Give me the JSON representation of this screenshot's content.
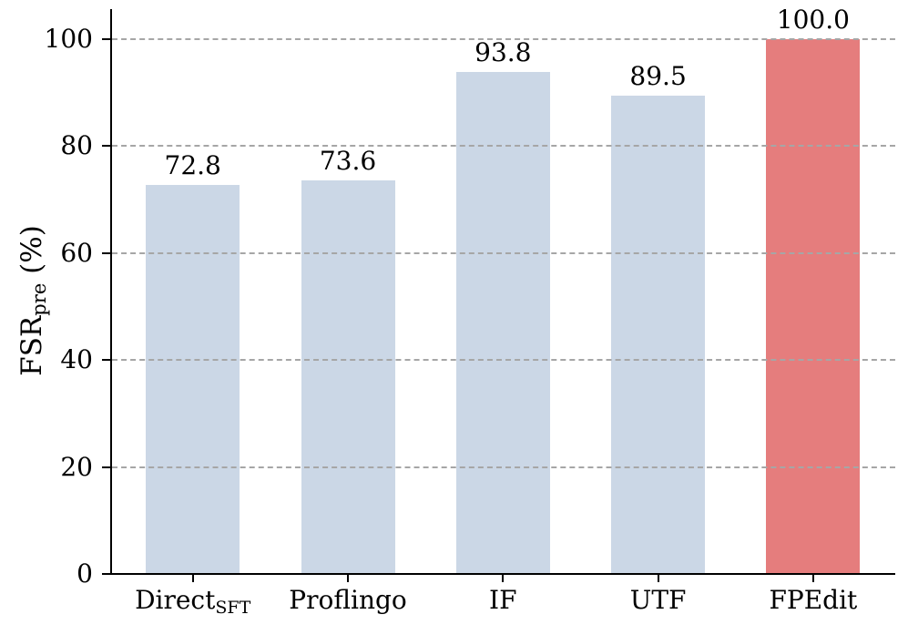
{
  "chart": {
    "ylabel": {
      "main": "FSR",
      "sub": "pre",
      "suffix": " (%)"
    }
  },
  "chart_data": {
    "type": "bar",
    "title": "",
    "categories": [
      "Direct_SFT",
      "Proflingo",
      "IF",
      "UTF",
      "FPEdit"
    ],
    "category_labels": [
      {
        "text": "Direct",
        "sub": "SFT"
      },
      {
        "text": "Proflingo",
        "sub": ""
      },
      {
        "text": "IF",
        "sub": ""
      },
      {
        "text": "UTF",
        "sub": ""
      },
      {
        "text": "FPEdit",
        "sub": ""
      }
    ],
    "values": [
      72.8,
      73.6,
      93.8,
      89.5,
      100.0
    ],
    "value_labels": [
      "72.8",
      "73.6",
      "93.8",
      "89.5",
      "100.0"
    ],
    "bar_colors": [
      "#cbd7e6",
      "#cbd7e6",
      "#cbd7e6",
      "#cbd7e6",
      "#e57d7d"
    ],
    "bar_color_default": "#cbd7e6",
    "bar_color_highlight": "#e57d7d",
    "highlight_category": "FPEdit",
    "xlabel": "",
    "ylabel": "FSR_pre (%)",
    "yticks": [
      0,
      20,
      40,
      60,
      80,
      100
    ],
    "ytick_labels": [
      "0",
      "20",
      "40",
      "60",
      "80",
      "100"
    ],
    "ylim": [
      0,
      105.5
    ],
    "grid": {
      "axis": "y",
      "style": "dashed",
      "color": "#a6a6a6"
    },
    "legend": null
  }
}
